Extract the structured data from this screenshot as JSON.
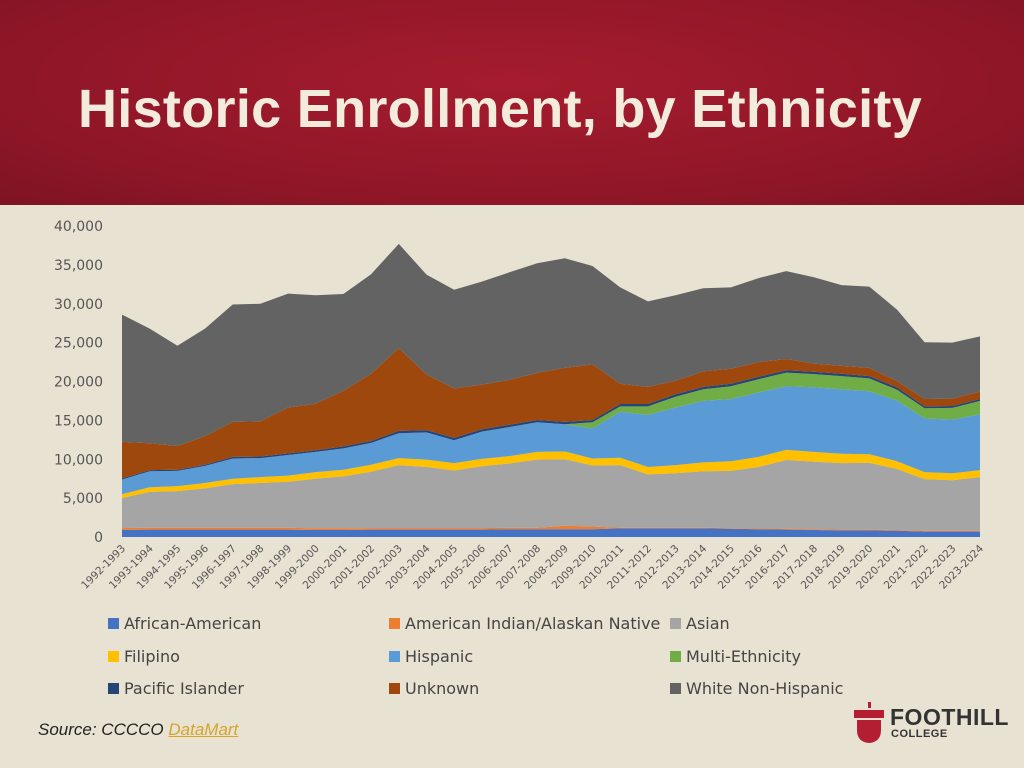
{
  "slide": {
    "title": "Historic Enrollment, by Ethnicity",
    "source_prefix": "Source: CCCCO ",
    "source_link": "DataMart",
    "logo_line1": "FOOTHILL",
    "logo_line2": "COLLEGE"
  },
  "colors": {
    "header": "#961a2b",
    "background": "#e8e2d2",
    "link": "#d4a52a"
  },
  "chart_data": {
    "type": "area",
    "stacked": true,
    "ylim": [
      0,
      40000
    ],
    "yticks": [
      "0",
      "5,000",
      "10,000",
      "15,000",
      "20,000",
      "25,000",
      "30,000",
      "35,000",
      "40,000"
    ],
    "grid": false,
    "legend_position": "bottom",
    "categories": [
      "1992-1993",
      "1993-1994",
      "1994-1995",
      "1995-1996",
      "1996-1997",
      "1997-1998",
      "1998-1999",
      "1999-2000",
      "2000-2001",
      "2001-2002",
      "2002-2003",
      "2003-2004",
      "2004-2005",
      "2005-2006",
      "2006-2007",
      "2007-2008",
      "2008-2009",
      "2009-2010",
      "2010-2011",
      "2011-2012",
      "2012-2013",
      "2013-2014",
      "2014-2015",
      "2015-2016",
      "2016-2017",
      "2017-2018",
      "2018-2019",
      "2019-2020",
      "2020-2021",
      "2021-2022",
      "2022-2023",
      "2023-2024"
    ],
    "series": [
      {
        "name": "African-American",
        "color": "#4472c4",
        "values": [
          900,
          950,
          950,
          950,
          950,
          950,
          950,
          900,
          900,
          950,
          950,
          950,
          950,
          950,
          1000,
          1000,
          1000,
          1000,
          1100,
          1100,
          1100,
          1100,
          1050,
          1000,
          950,
          900,
          850,
          850,
          800,
          700,
          700,
          700
        ]
      },
      {
        "name": "American Indian/Alaskan Native",
        "color": "#ed7d31",
        "values": [
          250,
          250,
          250,
          250,
          250,
          250,
          250,
          200,
          200,
          200,
          200,
          200,
          200,
          200,
          200,
          200,
          450,
          350,
          100,
          100,
          100,
          100,
          100,
          100,
          100,
          100,
          100,
          100,
          100,
          100,
          100,
          100
        ]
      },
      {
        "name": "Asian",
        "color": "#a5a5a5",
        "values": [
          3850,
          4600,
          4700,
          5050,
          5600,
          5750,
          5900,
          6400,
          6700,
          7250,
          8100,
          7850,
          7400,
          7950,
          8250,
          8750,
          8550,
          7850,
          8050,
          6850,
          7000,
          7250,
          7350,
          7900,
          8850,
          8700,
          8550,
          8600,
          7850,
          6650,
          6500,
          6900
        ]
      },
      {
        "name": "Filipino",
        "color": "#ffc000",
        "values": [
          500,
          600,
          650,
          700,
          700,
          750,
          800,
          850,
          850,
          900,
          900,
          950,
          950,
          950,
          950,
          1000,
          1000,
          900,
          950,
          950,
          1050,
          1150,
          1250,
          1300,
          1300,
          1250,
          1200,
          1100,
          1000,
          900,
          900,
          900
        ]
      },
      {
        "name": "Hispanic",
        "color": "#5b9bd5",
        "values": [
          1900,
          2050,
          1950,
          2200,
          2600,
          2450,
          2650,
          2600,
          2750,
          2800,
          3200,
          3500,
          2950,
          3500,
          3750,
          3800,
          3500,
          3850,
          5900,
          6700,
          7400,
          7900,
          8000,
          8300,
          8200,
          8300,
          8300,
          8100,
          7800,
          6900,
          6900,
          7200
        ]
      },
      {
        "name": "Multi-Ethnicity",
        "color": "#70ad47",
        "values": [
          0,
          0,
          0,
          0,
          0,
          0,
          0,
          0,
          0,
          0,
          0,
          0,
          0,
          0,
          0,
          0,
          0,
          800,
          700,
          1100,
          1400,
          1500,
          1650,
          1700,
          1750,
          1700,
          1700,
          1650,
          1400,
          1300,
          1500,
          1700
        ]
      },
      {
        "name": "Pacific Islander",
        "color": "#264478",
        "values": [
          150,
          150,
          150,
          150,
          200,
          200,
          200,
          200,
          250,
          250,
          300,
          300,
          300,
          300,
          300,
          300,
          300,
          300,
          300,
          300,
          300,
          300,
          300,
          300,
          300,
          300,
          300,
          300,
          300,
          250,
          250,
          250
        ]
      },
      {
        "name": "Unknown",
        "color": "#9e480e",
        "values": [
          4700,
          3450,
          3050,
          3650,
          4500,
          4550,
          5900,
          6000,
          7150,
          8650,
          10650,
          7150,
          6350,
          5750,
          5750,
          6050,
          6950,
          7150,
          2600,
          2200,
          1750,
          2000,
          1950,
          1900,
          1450,
          1050,
          1000,
          1050,
          800,
          950,
          950,
          950
        ]
      },
      {
        "name": "White Non-Hispanic",
        "color": "#636363",
        "values": [
          16350,
          14750,
          12900,
          13850,
          15100,
          15100,
          14650,
          13950,
          12450,
          12800,
          13400,
          12850,
          12700,
          13250,
          13850,
          14100,
          14100,
          12650,
          12400,
          11000,
          11000,
          10700,
          10450,
          10800,
          11300,
          11100,
          10400,
          10450,
          9200,
          7300,
          7200,
          7100
        ]
      }
    ]
  }
}
